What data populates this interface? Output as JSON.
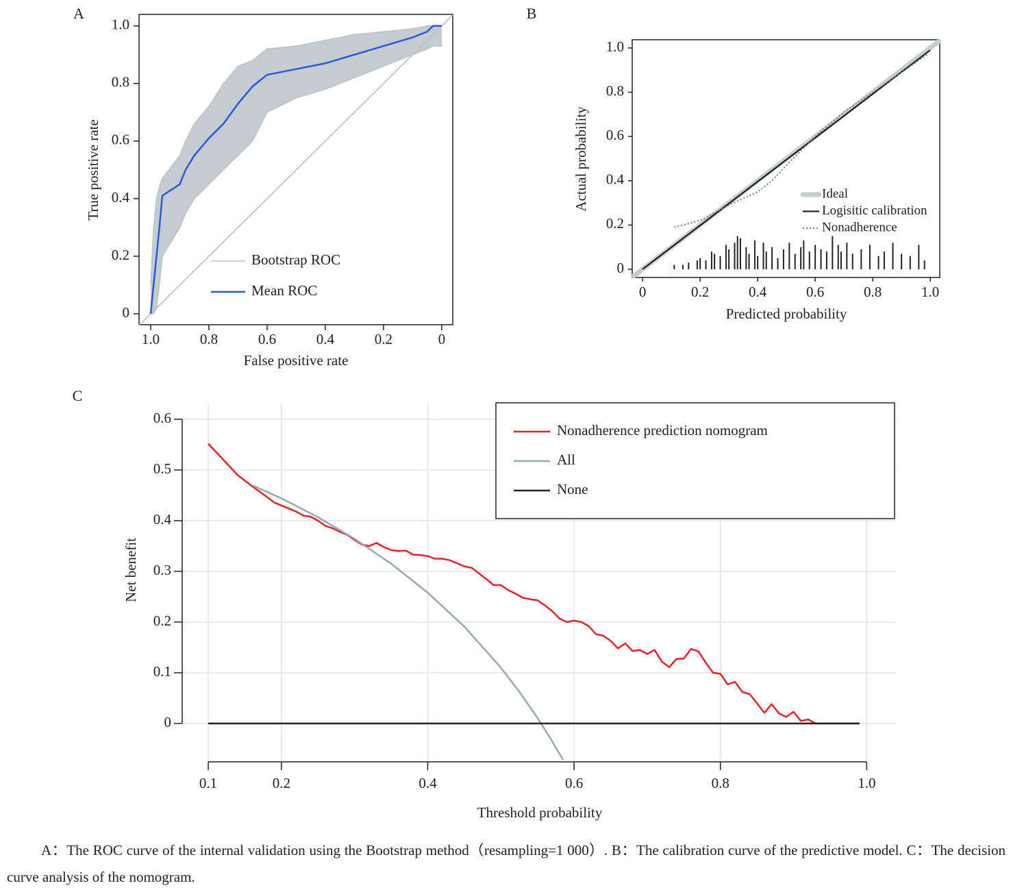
{
  "chart_data": [
    {
      "type": "line",
      "panel": "A",
      "x_label": "False positive rate",
      "y_label": "True positive rate",
      "xlim": [
        1.04,
        -0.038
      ],
      "ylim": [
        -0.038,
        1.04
      ],
      "xticks": [
        {
          "value": 1,
          "label": "1.0"
        },
        0.8,
        0.6,
        0.4,
        0.2,
        0
      ],
      "yticks": [
        0,
        0.2,
        0.4,
        0.6,
        0.8,
        {
          "value": 1,
          "label": "1.0"
        }
      ],
      "diagonal": true,
      "legend": "lower right",
      "x": [
        1,
        0.99,
        0.98,
        0.97,
        0.96,
        0.9,
        0.88,
        0.85,
        0.8,
        0.75,
        0.7,
        0.65,
        0.6,
        0.5,
        0.4,
        0.3,
        0.2,
        0.1,
        0.05,
        0.03,
        0
      ],
      "series": [
        {
          "name": "Bootstrap ROC",
          "color": "#b9c3c5",
          "upper": [
            0.1,
            0.3,
            0.4,
            0.44,
            0.47,
            0.55,
            0.6,
            0.66,
            0.72,
            0.8,
            0.86,
            0.88,
            0.92,
            0.93,
            0.95,
            0.97,
            0.98,
            0.99,
            1,
            1,
            1
          ],
          "lower": [
            0,
            0,
            0.02,
            0.1,
            0.2,
            0.3,
            0.35,
            0.4,
            0.45,
            0.5,
            0.55,
            0.6,
            0.7,
            0.75,
            0.78,
            0.82,
            0.86,
            0.9,
            0.92,
            0.93,
            0.93
          ]
        },
        {
          "name": "Mean ROC",
          "color": "#2d55e0",
          "values": [
            0,
            0.1,
            0.2,
            0.3,
            0.41,
            0.45,
            0.5,
            0.55,
            0.61,
            0.66,
            0.73,
            0.79,
            0.83,
            0.85,
            0.87,
            0.9,
            0.93,
            0.96,
            0.98,
            1,
            1
          ]
        }
      ]
    },
    {
      "type": "calibration",
      "panel": "B",
      "x_label": "Predicted probability",
      "y_label": "Actual probability",
      "xlim": [
        -0.036,
        1.033
      ],
      "ylim": [
        -0.037,
        1.037
      ],
      "xticks": [
        0,
        0.2,
        0.4,
        0.6,
        0.8,
        {
          "value": 1,
          "label": "1.0"
        }
      ],
      "yticks": [
        0,
        0.2,
        0.4,
        0.6,
        0.8,
        {
          "value": 1,
          "label": "1.0"
        }
      ],
      "legend": "lower right",
      "series": [
        {
          "name": "Ideal",
          "color": "#c4cccc",
          "style": "thick",
          "x": [
            -0.03,
            1.03
          ],
          "values": [
            -0.03,
            1.03
          ]
        },
        {
          "name": "Logisitic calibration",
          "color": "#111111",
          "style": "solid",
          "x": [
            0,
            1
          ],
          "values": [
            0,
            0.99
          ]
        },
        {
          "name": "Nonadherence",
          "color": "#777777",
          "style": "dotted",
          "x": [
            0.11,
            0.2,
            0.3,
            0.4,
            0.45,
            0.5,
            0.6,
            0.7,
            0.8,
            0.9,
            0.99
          ],
          "values": [
            0.19,
            0.22,
            0.29,
            0.35,
            0.4,
            0.47,
            0.6,
            0.71,
            0.8,
            0.89,
            0.97
          ]
        }
      ],
      "spikes": {
        "color": "#222222",
        "x": [
          0.11,
          0.14,
          0.16,
          0.19,
          0.2,
          0.22,
          0.24,
          0.25,
          0.27,
          0.29,
          0.3,
          0.32,
          0.33,
          0.34,
          0.36,
          0.37,
          0.39,
          0.4,
          0.42,
          0.43,
          0.45,
          0.47,
          0.49,
          0.51,
          0.53,
          0.55,
          0.56,
          0.58,
          0.6,
          0.62,
          0.64,
          0.66,
          0.68,
          0.69,
          0.71,
          0.73,
          0.76,
          0.79,
          0.82,
          0.84,
          0.87,
          0.9,
          0.93,
          0.96,
          0.98
        ],
        "values": [
          0.02,
          0.02,
          0.03,
          0.04,
          0.05,
          0.04,
          0.08,
          0.07,
          0.06,
          0.11,
          0.09,
          0.12,
          0.15,
          0.14,
          0.1,
          0.07,
          0.13,
          0.06,
          0.12,
          0.08,
          0.1,
          0.05,
          0.09,
          0.12,
          0.07,
          0.1,
          0.13,
          0.08,
          0.11,
          0.09,
          0.08,
          0.15,
          0.11,
          0.08,
          0.12,
          0.07,
          0.09,
          0.11,
          0.06,
          0.08,
          0.12,
          0.07,
          0.06,
          0.11,
          0.04
        ]
      }
    },
    {
      "type": "line",
      "panel": "C",
      "x_label": "Threshold probability",
      "y_label": "Net benefit",
      "xlim": [
        0.0644,
        1.039
      ],
      "ylim": [
        -0.0757,
        0.6297
      ],
      "xticks": [
        0.1,
        0.2,
        0.4,
        0.6,
        0.8,
        {
          "value": 1,
          "label": "1.0"
        }
      ],
      "yticks": [
        0,
        0.1,
        0.2,
        0.3,
        0.4,
        0.5,
        0.6
      ],
      "grid": true,
      "legend": "upper right",
      "legend_frame": true,
      "series": [
        {
          "name": "Nonadherence prediction nomogram",
          "color": "#e8202a",
          "x": [
            0.1,
            0.12,
            0.14,
            0.16,
            0.18,
            0.19,
            0.2,
            0.21,
            0.22,
            0.23,
            0.24,
            0.25,
            0.26,
            0.27,
            0.28,
            0.29,
            0.3,
            0.31,
            0.32,
            0.33,
            0.34,
            0.35,
            0.36,
            0.37,
            0.38,
            0.39,
            0.4,
            0.41,
            0.42,
            0.43,
            0.44,
            0.45,
            0.46,
            0.47,
            0.48,
            0.49,
            0.5,
            0.51,
            0.52,
            0.53,
            0.54,
            0.55,
            0.56,
            0.57,
            0.58,
            0.59,
            0.6,
            0.61,
            0.62,
            0.63,
            0.64,
            0.65,
            0.66,
            0.67,
            0.68,
            0.69,
            0.7,
            0.71,
            0.72,
            0.73,
            0.74,
            0.75,
            0.76,
            0.77,
            0.78,
            0.79,
            0.8,
            0.81,
            0.82,
            0.83,
            0.84,
            0.85,
            0.86,
            0.87,
            0.88,
            0.89,
            0.9,
            0.91,
            0.92,
            0.93,
            0.99
          ],
          "values": [
            0.552,
            0.521,
            0.49,
            0.468,
            0.447,
            0.436,
            0.43,
            0.424,
            0.418,
            0.41,
            0.408,
            0.4,
            0.39,
            0.385,
            0.378,
            0.372,
            0.362,
            0.353,
            0.35,
            0.356,
            0.348,
            0.342,
            0.34,
            0.341,
            0.333,
            0.332,
            0.33,
            0.325,
            0.325,
            0.322,
            0.316,
            0.31,
            0.307,
            0.296,
            0.285,
            0.273,
            0.273,
            0.263,
            0.256,
            0.248,
            0.245,
            0.243,
            0.233,
            0.222,
            0.207,
            0.2,
            0.203,
            0.2,
            0.192,
            0.176,
            0.173,
            0.163,
            0.148,
            0.158,
            0.143,
            0.145,
            0.137,
            0.145,
            0.122,
            0.111,
            0.127,
            0.128,
            0.147,
            0.142,
            0.12,
            0.1,
            0.098,
            0.077,
            0.082,
            0.062,
            0.058,
            0.04,
            0.021,
            0.038,
            0.02,
            0.013,
            0.023,
            0.005,
            0.008,
            0,
            0
          ]
        },
        {
          "name": "All",
          "color": "#99a8ab",
          "x": [
            0.16,
            0.2,
            0.25,
            0.3,
            0.35,
            0.4,
            0.45,
            0.5,
            0.525,
            0.55,
            0.57,
            0.585
          ],
          "values": [
            0.47,
            0.444,
            0.407,
            0.364,
            0.315,
            0.258,
            0.191,
            0.11,
            0.063,
            0.011,
            -0.035,
            -0.072
          ]
        },
        {
          "name": "None",
          "color": "#222222",
          "x": [
            0.1,
            0.99
          ],
          "values": [
            0,
            0
          ]
        }
      ]
    }
  ],
  "caption": "A：The ROC curve of the internal validation using the Bootstrap method（resampling=1 000）. B：The calibration curve of the predictive model. C：The decision curve analysis of the nomogram."
}
